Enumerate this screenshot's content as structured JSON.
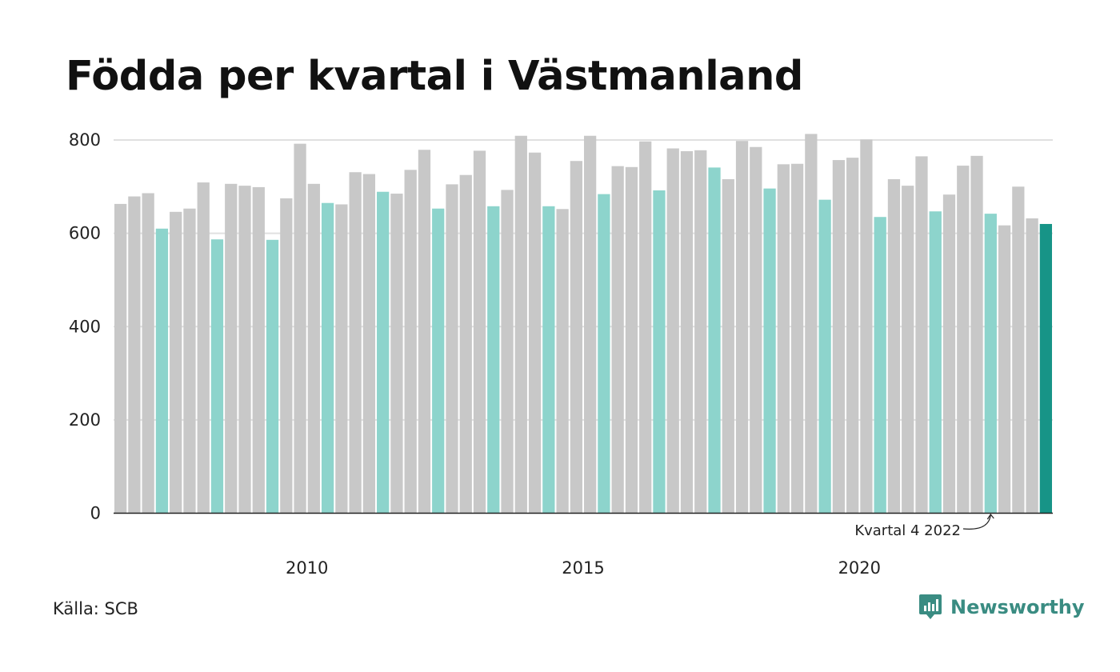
{
  "title": "Födda per kvartal i Västmanland",
  "source": "Källa: SCB",
  "brand": {
    "name": "Newsworthy",
    "icon": "newsworthy-logo-icon",
    "color": "#3a8c82"
  },
  "colors": {
    "other": "#c8c8c8",
    "q4": "#8dd4cc",
    "latest": "#179487",
    "grid": "#e0e0e0",
    "axis": "#222222"
  },
  "chart_data": {
    "type": "bar",
    "title": "Födda per kvartal i Västmanland",
    "xlabel": "",
    "ylabel": "",
    "ylim": [
      0,
      800
    ],
    "yticks": [
      0,
      200,
      400,
      600,
      800
    ],
    "xtick_labels": [
      "2010",
      "2015",
      "2020"
    ],
    "grid": true,
    "legend": "none",
    "highlight_rule": "Kvartal 4 bars in light teal, latest bar in dark teal",
    "categories": [
      "2007 K1",
      "2007 K2",
      "2007 K3",
      "2007 K4",
      "2008 K1",
      "2008 K2",
      "2008 K3",
      "2008 K4",
      "2009 K1",
      "2009 K2",
      "2009 K3",
      "2009 K4",
      "2010 K1",
      "2010 K2",
      "2010 K3",
      "2010 K4",
      "2011 K1",
      "2011 K2",
      "2011 K3",
      "2011 K4",
      "2012 K1",
      "2012 K2",
      "2012 K3",
      "2012 K4",
      "2013 K1",
      "2013 K2",
      "2013 K3",
      "2013 K4",
      "2014 K1",
      "2014 K2",
      "2014 K3",
      "2014 K4",
      "2015 K1",
      "2015 K2",
      "2015 K3",
      "2015 K4",
      "2016 K1",
      "2016 K2",
      "2016 K3",
      "2016 K4",
      "2017 K1",
      "2017 K2",
      "2017 K3",
      "2017 K4",
      "2018 K1",
      "2018 K2",
      "2018 K3",
      "2018 K4",
      "2019 K1",
      "2019 K2",
      "2019 K3",
      "2019 K4",
      "2020 K1",
      "2020 K2",
      "2020 K3",
      "2020 K4",
      "2021 K1",
      "2021 K2",
      "2021 K3",
      "2021 K4",
      "2022 K1",
      "2022 K2",
      "2022 K3",
      "2022 K4",
      "2023 K1",
      "2023 K2",
      "2023 K3",
      "2023 K4"
    ],
    "values": [
      663,
      679,
      686,
      610,
      646,
      653,
      709,
      587,
      706,
      702,
      699,
      586,
      675,
      792,
      706,
      665,
      662,
      731,
      727,
      689,
      685,
      736,
      779,
      653,
      705,
      725,
      777,
      658,
      693,
      809,
      773,
      658,
      652,
      755,
      809,
      684,
      744,
      742,
      797,
      692,
      782,
      776,
      778,
      741,
      716,
      798,
      785,
      696,
      748,
      749,
      813,
      672,
      757,
      762,
      801,
      635,
      716,
      702,
      765,
      647,
      683,
      745,
      766,
      642,
      617,
      700,
      632,
      620
    ],
    "annotation": {
      "text": "Kvartal 4 2022",
      "category": "2022 K4"
    }
  }
}
